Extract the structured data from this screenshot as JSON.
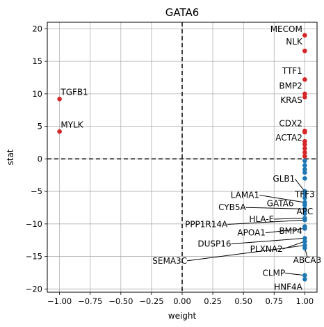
{
  "chart_data": {
    "type": "scatter",
    "title": "GATA6",
    "xlabel": "weight",
    "ylabel": "stat",
    "xlim": [
      -1.1,
      1.1
    ],
    "ylim": [
      -20.5,
      21.0
    ],
    "xticks": [
      -1.0,
      -0.75,
      -0.5,
      -0.25,
      0.0,
      0.25,
      0.5,
      0.75,
      1.0
    ],
    "xtick_labels": [
      "−1.00",
      "−0.75",
      "−0.50",
      "−0.25",
      "0.00",
      "0.25",
      "0.50",
      "0.75",
      "1.00"
    ],
    "yticks": [
      -20,
      -15,
      -10,
      -5,
      0,
      5,
      10,
      15,
      20
    ],
    "ytick_labels": [
      "−20",
      "−15",
      "−10",
      "−5",
      "0",
      "5",
      "10",
      "15",
      "20"
    ],
    "grid": true,
    "reference_lines": {
      "x": 0,
      "y": 0,
      "style": "dashed"
    },
    "colors": {
      "positive": "#d62728",
      "negative": "#1f77b4",
      "grid": "#b0b0b0"
    },
    "points": [
      {
        "x": -1.0,
        "y": 9.2,
        "label": "TGFB1"
      },
      {
        "x": -1.0,
        "y": 4.2,
        "label": "MYLK"
      },
      {
        "x": 1.0,
        "y": 19.0,
        "label": "MECOM"
      },
      {
        "x": 1.0,
        "y": 16.6,
        "label": "NLK"
      },
      {
        "x": 1.0,
        "y": 12.2,
        "label": "TTF1"
      },
      {
        "x": 1.0,
        "y": 10.0,
        "label": "BMP2"
      },
      {
        "x": 1.0,
        "y": 9.5,
        "label": "KRAS"
      },
      {
        "x": 1.0,
        "y": 4.3,
        "label": "CDX2"
      },
      {
        "x": 1.0,
        "y": 4.1
      },
      {
        "x": 1.0,
        "y": 2.7,
        "label": "ACTA2"
      },
      {
        "x": 1.0,
        "y": 2.2
      },
      {
        "x": 1.0,
        "y": 1.6
      },
      {
        "x": 1.0,
        "y": 1.0
      },
      {
        "x": 1.0,
        "y": 0.4
      },
      {
        "x": 1.0,
        "y": -0.3
      },
      {
        "x": 1.0,
        "y": -1.0
      },
      {
        "x": 1.0,
        "y": -1.6
      },
      {
        "x": 1.0,
        "y": -2.1
      },
      {
        "x": 1.0,
        "y": -3.0
      },
      {
        "x": 1.0,
        "y": -5.0,
        "label": "GLB1"
      },
      {
        "x": 1.0,
        "y": -5.4
      },
      {
        "x": 1.0,
        "y": -6.0,
        "label": "TFF3"
      },
      {
        "x": 1.0,
        "y": -6.7,
        "label": "LAMA1"
      },
      {
        "x": 1.0,
        "y": -7.1,
        "label": "GATA6"
      },
      {
        "x": 1.0,
        "y": -7.7,
        "label": "CYB5A"
      },
      {
        "x": 1.0,
        "y": -8.4,
        "label": "APC"
      },
      {
        "x": 1.0,
        "y": -9.1,
        "label": "HLA-E"
      },
      {
        "x": 1.0,
        "y": -9.4,
        "label": "PPP1R14A"
      },
      {
        "x": 1.0,
        "y": -10.4,
        "label": "BMP4"
      },
      {
        "x": 1.0,
        "y": -10.7,
        "label": "APOA1"
      },
      {
        "x": 1.0,
        "y": -12.2,
        "label": "DUSP16"
      },
      {
        "x": 1.0,
        "y": -12.7,
        "label": "PLXNA2"
      },
      {
        "x": 1.0,
        "y": -13.3,
        "label": "SEMA3C"
      },
      {
        "x": 1.0,
        "y": -13.7,
        "label": "ABCA3"
      },
      {
        "x": 1.0,
        "y": -17.9,
        "label": "CLMP"
      },
      {
        "x": 1.0,
        "y": -18.5,
        "label": "HNF4A"
      }
    ],
    "annotations": [
      {
        "text": "TGFB1",
        "tx": -0.99,
        "ty": 9.8,
        "anchor": "start",
        "target": "TGFB1"
      },
      {
        "text": "MYLK",
        "tx": -0.99,
        "ty": 4.8,
        "anchor": "start",
        "target": "MYLK"
      },
      {
        "text": "MECOM",
        "tx": 0.98,
        "ty": 19.5,
        "anchor": "end",
        "target": "MECOM"
      },
      {
        "text": "NLK",
        "tx": 0.98,
        "ty": 17.6,
        "anchor": "end",
        "target": "NLK"
      },
      {
        "text": "TTF1",
        "tx": 0.98,
        "ty": 13.1,
        "anchor": "end",
        "target": "TTF1"
      },
      {
        "text": "BMP2",
        "tx": 0.98,
        "ty": 10.8,
        "anchor": "end",
        "target": "BMP2"
      },
      {
        "text": "KRAS",
        "tx": 0.98,
        "ty": 8.6,
        "anchor": "end",
        "target": "KRAS"
      },
      {
        "text": "CDX2",
        "tx": 0.98,
        "ty": 5.0,
        "anchor": "end",
        "target": "CDX2"
      },
      {
        "text": "ACTA2",
        "tx": 0.98,
        "ty": 2.8,
        "anchor": "end",
        "target": "ACTA2"
      },
      {
        "text": "GLB1",
        "tx": 0.92,
        "ty": -3.5,
        "anchor": "end",
        "target": "GLB1",
        "line": true
      },
      {
        "text": "TFF3",
        "tx": 1.0,
        "ty": -5.9,
        "anchor": "middle",
        "target": "TFF3"
      },
      {
        "text": "LAMA1",
        "tx": 0.63,
        "ty": -6.0,
        "anchor": "end",
        "target": "LAMA1",
        "line": true
      },
      {
        "text": "GATA6",
        "tx": 0.91,
        "ty": -7.3,
        "anchor": "end",
        "target": "GATA6"
      },
      {
        "text": "CYB5A",
        "tx": 0.52,
        "ty": -7.9,
        "anchor": "end",
        "target": "CYB5A",
        "line": true
      },
      {
        "text": "APC",
        "tx": 1.0,
        "ty": -8.5,
        "anchor": "middle",
        "target": "APC"
      },
      {
        "text": "HLA-E",
        "tx": 0.75,
        "ty": -9.7,
        "anchor": "end",
        "target": "HLA-E",
        "line": true
      },
      {
        "text": "PPP1R14A",
        "tx": 0.37,
        "ty": -10.5,
        "anchor": "end",
        "target": "PPP1R14A",
        "line": true
      },
      {
        "text": "BMP4",
        "tx": 0.98,
        "ty": -11.5,
        "anchor": "end",
        "target": "BMP4"
      },
      {
        "text": "APOA1",
        "tx": 0.68,
        "ty": -11.8,
        "anchor": "end",
        "target": "APOA1",
        "line": true
      },
      {
        "text": "DUSP16",
        "tx": 0.4,
        "ty": -13.5,
        "anchor": "end",
        "target": "DUSP16",
        "line": true
      },
      {
        "text": "PLXNA2",
        "tx": 0.82,
        "ty": -14.3,
        "anchor": "end",
        "target": "PLXNA2",
        "line": true
      },
      {
        "text": "SEMA3C",
        "tx": 0.04,
        "ty": -16.1,
        "anchor": "end",
        "target": "SEMA3C",
        "line": true
      },
      {
        "text": "ABCA3",
        "tx": 1.02,
        "ty": -16.0,
        "anchor": "middle",
        "target": "ABCA3",
        "line": true
      },
      {
        "text": "CLMP",
        "tx": 0.84,
        "ty": -18.0,
        "anchor": "end",
        "target": "CLMP",
        "line": true
      },
      {
        "text": "HNF4A",
        "tx": 0.98,
        "ty": -20.1,
        "anchor": "end",
        "target": "HNF4A"
      }
    ]
  }
}
